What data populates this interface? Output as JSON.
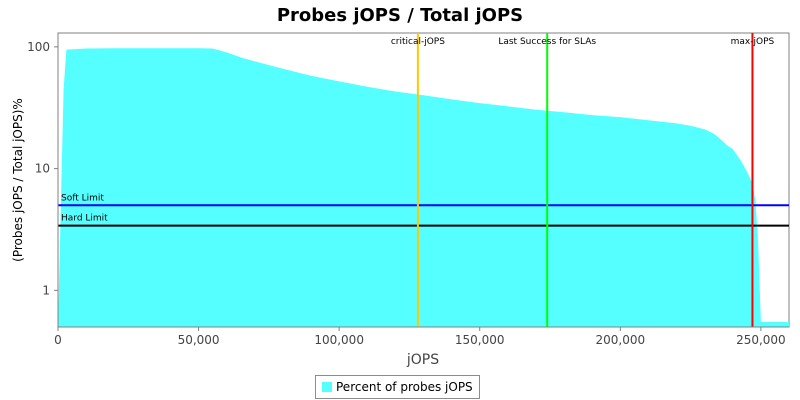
{
  "chart_data": {
    "type": "area",
    "title": "Probes jOPS / Total jOPS",
    "xlabel": "jOPS",
    "ylabel": "(Probes jOPS / Total jOPS)%",
    "y_scale": "log",
    "xlim": [
      0,
      260000
    ],
    "ylim": [
      0.5,
      130
    ],
    "x_ticks": [
      0,
      50000,
      100000,
      150000,
      200000,
      250000
    ],
    "x_tick_labels": [
      "0",
      "50,000",
      "100,000",
      "150,000",
      "200,000",
      "250,000"
    ],
    "y_ticks": [
      1,
      10,
      100
    ],
    "y_tick_labels": [
      "1",
      "10",
      "100"
    ],
    "grid": false,
    "legend_position": "bottom",
    "series": [
      {
        "name": "Percent of probes jOPS",
        "color": "#55ffff",
        "x": [
          0,
          2000,
          3000,
          10000,
          20000,
          30000,
          40000,
          50000,
          55000,
          60000,
          65000,
          70000,
          80000,
          90000,
          100000,
          110000,
          120000,
          130000,
          140000,
          150000,
          160000,
          170000,
          180000,
          190000,
          200000,
          210000,
          220000,
          225000,
          230000,
          233000,
          235000,
          238000,
          240000,
          243000,
          245000,
          246000,
          247000,
          248000,
          249000,
          250000,
          260000
        ],
        "y": [
          0.5,
          45,
          95,
          97,
          97.5,
          97.5,
          97.5,
          97.5,
          97,
          90,
          82,
          76,
          66,
          58,
          52,
          47,
          43,
          40,
          37,
          34.5,
          32.5,
          30.5,
          29,
          27.5,
          26.5,
          25,
          23.5,
          22.5,
          21,
          19.5,
          18,
          15.5,
          14.5,
          11.5,
          9.5,
          8.5,
          7.5,
          5.5,
          2.5,
          0.55,
          0.55
        ]
      }
    ],
    "vertical_markers": [
      {
        "label": "critical-jOPS",
        "x": 128000,
        "color": "#ffc800"
      },
      {
        "label": "Last Success for SLAs",
        "x": 174000,
        "color": "#00ff00"
      },
      {
        "label": "max-jOPS",
        "x": 247000,
        "color": "#ff0000"
      }
    ],
    "horizontal_markers": [
      {
        "label": "Soft Limit",
        "y": 5,
        "color": "#0000ff"
      },
      {
        "label": "Hard Limit",
        "y": 3.4,
        "color": "#000000"
      }
    ]
  }
}
